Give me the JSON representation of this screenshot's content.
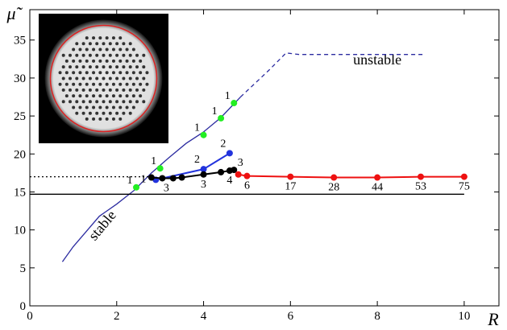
{
  "chart_data": {
    "type": "line",
    "x_label": "R",
    "y_label": "μ̃",
    "xlim": [
      0,
      10.8
    ],
    "ylim": [
      0,
      39
    ],
    "xticks": [
      0,
      2,
      4,
      6,
      8,
      10
    ],
    "yticks": [
      0,
      5,
      10,
      15,
      20,
      25,
      30,
      35
    ],
    "annotations": [
      {
        "text": "stable",
        "x": 1.75,
        "y": 10.2,
        "rotate": -50
      },
      {
        "text": "unstable",
        "x": 8.0,
        "y": 31.8,
        "rotate": 0
      }
    ],
    "series": [
      {
        "color": "#2b2ba0",
        "dash": "solid",
        "marker": false,
        "x": [
          0.75,
          1.0,
          1.3,
          1.6,
          2.0,
          2.4,
          2.8,
          3.2,
          3.6,
          4.0,
          4.4,
          4.7,
          4.85
        ],
        "y": [
          5.8,
          7.8,
          9.8,
          11.8,
          13.4,
          15.2,
          17.5,
          19.5,
          21.4,
          22.9,
          24.8,
          26.6,
          27.5
        ]
      },
      {
        "color": "#2b2ba0",
        "dash": "dashed",
        "marker": false,
        "x": [
          4.85,
          5.5,
          5.9,
          6.2,
          9.1
        ],
        "y": [
          27.5,
          31.0,
          33.3,
          33.1,
          33.1
        ]
      },
      {
        "color": "#000000",
        "dash": "solid",
        "marker": false,
        "x": [
          0,
          10
        ],
        "y": [
          14.7,
          14.7
        ]
      },
      {
        "color": "#000000",
        "dash": "dotted",
        "marker": false,
        "x": [
          0,
          2.8
        ],
        "y": [
          17.0,
          17.0
        ]
      },
      {
        "color": "#2233dd",
        "dash": "solid",
        "marker": true,
        "x": [
          2.9,
          4.0,
          4.6
        ],
        "y": [
          16.6,
          18.0,
          20.1
        ],
        "point_labels": [
          null,
          "2",
          "2"
        ]
      },
      {
        "color": "#000000",
        "dash": "solid",
        "marker": true,
        "x": [
          2.8,
          3.05,
          3.3,
          3.5,
          4.0,
          4.4,
          4.6,
          4.7
        ],
        "y": [
          16.9,
          16.8,
          16.8,
          16.9,
          17.3,
          17.6,
          17.8,
          17.9
        ],
        "point_labels": [
          "1",
          "3",
          null,
          null,
          "3",
          null,
          "4",
          "3"
        ]
      },
      {
        "color": "#ee1111",
        "dash": "solid",
        "marker": true,
        "x": [
          4.8,
          5.0,
          6.0,
          7.0,
          8.0,
          9.0,
          10.0
        ],
        "y": [
          17.3,
          17.1,
          17.0,
          16.9,
          16.9,
          17.0,
          17.0
        ],
        "point_labels": [
          null,
          "6",
          "17",
          "28",
          "44",
          "53",
          "75"
        ]
      },
      {
        "color": "#22ee22",
        "dash": "none",
        "marker": true,
        "x": [
          2.45,
          3.0,
          4.0,
          4.4,
          4.7
        ],
        "y": [
          15.6,
          18.1,
          22.5,
          24.7,
          26.7
        ],
        "point_labels": [
          "1",
          "1",
          "1",
          "1",
          "1"
        ]
      }
    ]
  }
}
